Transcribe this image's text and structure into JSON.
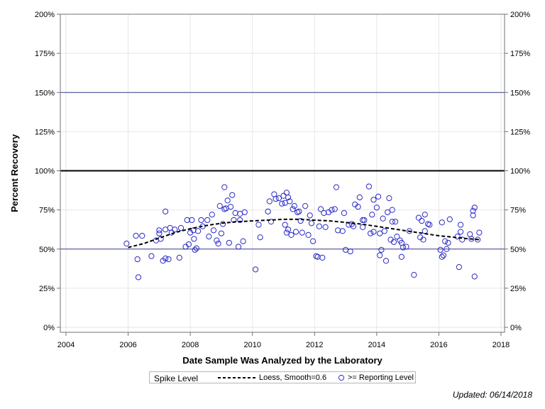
{
  "chart_data": {
    "type": "scatter",
    "xlabel": "Date Sample Was Analyzed by the Laboratory",
    "ylabel": "Percent Recovery",
    "xlim": [
      2004,
      2018
    ],
    "ylim": [
      0,
      200
    ],
    "x_ticks": [
      "2004",
      "2006",
      "2008",
      "2010",
      "2012",
      "2014",
      "2016",
      "2018"
    ],
    "y_ticks": [
      "0%",
      "25%",
      "50%",
      "75%",
      "100%",
      "125%",
      "150%",
      "175%",
      "200%"
    ],
    "y_tick_values": [
      0,
      25,
      50,
      75,
      100,
      125,
      150,
      175,
      200
    ],
    "reference_lines": [
      {
        "y": 50,
        "color": "#3b3b8f",
        "width": 1
      },
      {
        "y": 100,
        "color": "#000000",
        "width": 2
      },
      {
        "y": 150,
        "color": "#3b3b8f",
        "width": 1
      }
    ],
    "grid": true,
    "legend_position": "bottom",
    "marker_color": "#2a2ac8",
    "series": [
      {
        "name": ">= Reporting Level",
        "kind": "scatter",
        "points": [
          [
            2005.95,
            53.5
          ],
          [
            2006.25,
            58.5
          ],
          [
            2006.3,
            43.5
          ],
          [
            2006.33,
            32
          ],
          [
            2006.45,
            58.5
          ],
          [
            2006.75,
            45.5
          ],
          [
            2006.9,
            55.5
          ],
          [
            2007.0,
            60
          ],
          [
            2007.0,
            62
          ],
          [
            2007.05,
            56.5
          ],
          [
            2007.12,
            42.5
          ],
          [
            2007.2,
            44
          ],
          [
            2007.2,
            62.5
          ],
          [
            2007.2,
            74
          ],
          [
            2007.3,
            43.5
          ],
          [
            2007.35,
            63.5
          ],
          [
            2007.4,
            60.5
          ],
          [
            2007.5,
            62.5
          ],
          [
            2007.65,
            44.5
          ],
          [
            2007.7,
            63.5
          ],
          [
            2007.85,
            51.5
          ],
          [
            2007.9,
            68.5
          ],
          [
            2007.95,
            53
          ],
          [
            2008.0,
            60.5
          ],
          [
            2008.05,
            68.5
          ],
          [
            2008.1,
            62
          ],
          [
            2008.12,
            56.5
          ],
          [
            2008.15,
            49.5
          ],
          [
            2008.2,
            50.5
          ],
          [
            2008.25,
            61.5
          ],
          [
            2008.35,
            68.5
          ],
          [
            2008.4,
            64.5
          ],
          [
            2008.55,
            68.5
          ],
          [
            2008.6,
            58
          ],
          [
            2008.7,
            72
          ],
          [
            2008.75,
            62
          ],
          [
            2008.85,
            55.5
          ],
          [
            2008.9,
            53.5
          ],
          [
            2008.95,
            77.5
          ],
          [
            2009.0,
            60
          ],
          [
            2009.05,
            66
          ],
          [
            2009.1,
            75.5
          ],
          [
            2009.1,
            89.5
          ],
          [
            2009.15,
            76
          ],
          [
            2009.2,
            81
          ],
          [
            2009.25,
            54
          ],
          [
            2009.3,
            77
          ],
          [
            2009.35,
            84.5
          ],
          [
            2009.4,
            68.5
          ],
          [
            2009.45,
            73
          ],
          [
            2009.55,
            51.5
          ],
          [
            2009.6,
            68.5
          ],
          [
            2009.6,
            72.5
          ],
          [
            2009.7,
            55
          ],
          [
            2009.75,
            73.5
          ],
          [
            2010.1,
            37
          ],
          [
            2010.2,
            65.5
          ],
          [
            2010.25,
            57.5
          ],
          [
            2010.5,
            74
          ],
          [
            2010.55,
            80.5
          ],
          [
            2010.6,
            67.5
          ],
          [
            2010.7,
            85
          ],
          [
            2010.75,
            82
          ],
          [
            2010.85,
            82.5
          ],
          [
            2010.95,
            79
          ],
          [
            2011.0,
            84
          ],
          [
            2011.05,
            65.5
          ],
          [
            2011.05,
            79.5
          ],
          [
            2011.1,
            60.5
          ],
          [
            2011.1,
            86
          ],
          [
            2011.15,
            83
          ],
          [
            2011.15,
            62.5
          ],
          [
            2011.2,
            80.5
          ],
          [
            2011.25,
            59
          ],
          [
            2011.3,
            75.5
          ],
          [
            2011.35,
            77.5
          ],
          [
            2011.4,
            61
          ],
          [
            2011.45,
            73.5
          ],
          [
            2011.5,
            74
          ],
          [
            2011.55,
            68
          ],
          [
            2011.6,
            60.5
          ],
          [
            2011.7,
            77.5
          ],
          [
            2011.8,
            59
          ],
          [
            2011.85,
            71.5
          ],
          [
            2011.9,
            66.5
          ],
          [
            2011.95,
            55
          ],
          [
            2012.05,
            45.5
          ],
          [
            2012.1,
            45
          ],
          [
            2012.15,
            64.5
          ],
          [
            2012.2,
            75.5
          ],
          [
            2012.25,
            44.5
          ],
          [
            2012.3,
            73
          ],
          [
            2012.35,
            64
          ],
          [
            2012.45,
            73.5
          ],
          [
            2012.55,
            75
          ],
          [
            2012.65,
            75.5
          ],
          [
            2012.7,
            89.5
          ],
          [
            2012.75,
            62
          ],
          [
            2012.9,
            61.5
          ],
          [
            2012.95,
            73
          ],
          [
            2013.0,
            49.5
          ],
          [
            2013.1,
            65.5
          ],
          [
            2013.15,
            48.5
          ],
          [
            2013.2,
            66
          ],
          [
            2013.25,
            64.5
          ],
          [
            2013.3,
            78.5
          ],
          [
            2013.4,
            77
          ],
          [
            2013.45,
            83
          ],
          [
            2013.55,
            68.5
          ],
          [
            2013.55,
            64
          ],
          [
            2013.6,
            68.5
          ],
          [
            2013.75,
            90
          ],
          [
            2013.8,
            60
          ],
          [
            2013.85,
            72
          ],
          [
            2013.9,
            61
          ],
          [
            2013.9,
            81.5
          ],
          [
            2014.0,
            76.5
          ],
          [
            2014.05,
            83.5
          ],
          [
            2014.1,
            46
          ],
          [
            2014.1,
            60
          ],
          [
            2014.15,
            49.5
          ],
          [
            2014.2,
            69.5
          ],
          [
            2014.25,
            61.5
          ],
          [
            2014.3,
            42.5
          ],
          [
            2014.35,
            73.5
          ],
          [
            2014.4,
            82.5
          ],
          [
            2014.45,
            56
          ],
          [
            2014.5,
            67.5
          ],
          [
            2014.5,
            75
          ],
          [
            2014.55,
            54.5
          ],
          [
            2014.6,
            67.5
          ],
          [
            2014.65,
            58
          ],
          [
            2014.75,
            55.5
          ],
          [
            2014.8,
            45
          ],
          [
            2014.8,
            54
          ],
          [
            2014.85,
            51
          ],
          [
            2014.95,
            51.5
          ],
          [
            2015.05,
            61.5
          ],
          [
            2015.2,
            33.5
          ],
          [
            2015.35,
            70
          ],
          [
            2015.4,
            57.5
          ],
          [
            2015.45,
            68
          ],
          [
            2015.5,
            56
          ],
          [
            2015.55,
            61.5
          ],
          [
            2015.55,
            72
          ],
          [
            2015.65,
            66
          ],
          [
            2015.7,
            65.5
          ],
          [
            2016.05,
            49.5
          ],
          [
            2016.1,
            45
          ],
          [
            2016.1,
            67
          ],
          [
            2016.15,
            46
          ],
          [
            2016.2,
            55
          ],
          [
            2016.25,
            50
          ],
          [
            2016.3,
            54
          ],
          [
            2016.35,
            69
          ],
          [
            2016.6,
            58
          ],
          [
            2016.65,
            38.5
          ],
          [
            2016.7,
            61
          ],
          [
            2016.7,
            65.5
          ],
          [
            2016.75,
            56
          ],
          [
            2017.0,
            59.5
          ],
          [
            2017.05,
            56.5
          ],
          [
            2017.1,
            71.5
          ],
          [
            2017.1,
            74.5
          ],
          [
            2017.15,
            32.5
          ],
          [
            2017.15,
            76.5
          ],
          [
            2017.25,
            56
          ],
          [
            2017.3,
            60.5
          ]
        ]
      },
      {
        "name": "Loess, Smooth=0.6",
        "kind": "line",
        "style": "dashed",
        "points": [
          [
            2006.0,
            51
          ],
          [
            2006.5,
            53.5
          ],
          [
            2007.0,
            57
          ],
          [
            2007.5,
            60.5
          ],
          [
            2008.0,
            63
          ],
          [
            2008.5,
            65
          ],
          [
            2009.0,
            66.5
          ],
          [
            2009.5,
            67.5
          ],
          [
            2010.0,
            68
          ],
          [
            2010.5,
            68.5
          ],
          [
            2011.0,
            69
          ],
          [
            2011.5,
            69
          ],
          [
            2012.0,
            68.5
          ],
          [
            2012.5,
            68
          ],
          [
            2013.0,
            67
          ],
          [
            2013.5,
            66
          ],
          [
            2014.0,
            64.5
          ],
          [
            2014.5,
            63
          ],
          [
            2015.0,
            61.5
          ],
          [
            2015.5,
            60
          ],
          [
            2016.0,
            58.5
          ],
          [
            2016.5,
            57.5
          ],
          [
            2017.0,
            56.5
          ],
          [
            2017.3,
            56
          ]
        ]
      }
    ]
  },
  "legend": {
    "title": "Spike Level",
    "loess_label": "Loess, Smooth=0.6",
    "marker_label": ">= Reporting Level"
  },
  "footnote": "Updated: 06/14/2018"
}
